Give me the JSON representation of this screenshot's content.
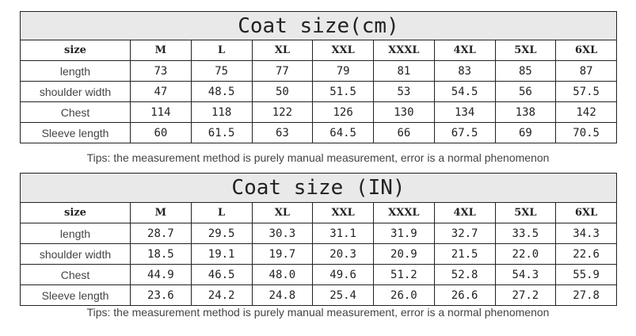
{
  "tables": [
    {
      "title": "Coat size(cm)",
      "header": [
        "size",
        "M",
        "L",
        "XL",
        "XXL",
        "XXXL",
        "4XL",
        "5XL",
        "6XL"
      ],
      "rows": [
        {
          "label": "length",
          "values": [
            "73",
            "75",
            "77",
            "79",
            "81",
            "83",
            "85",
            "87"
          ]
        },
        {
          "label": "shoulder width",
          "values": [
            "47",
            "48.5",
            "50",
            "51.5",
            "53",
            "54.5",
            "56",
            "57.5"
          ]
        },
        {
          "label": "Chest",
          "values": [
            "114",
            "118",
            "122",
            "126",
            "130",
            "134",
            "138",
            "142"
          ]
        },
        {
          "label": "Sleeve length",
          "values": [
            "60",
            "61.5",
            "63",
            "64.5",
            "66",
            "67.5",
            "69",
            "70.5"
          ]
        }
      ],
      "tips": "Tips: the measurement method is purely manual measurement, error is a normal phenomenon"
    },
    {
      "title": "Coat size (IN)",
      "header": [
        "size",
        "M",
        "L",
        "XL",
        "XXL",
        "XXXL",
        "4XL",
        "5XL",
        "6XL"
      ],
      "rows": [
        {
          "label": "length",
          "values": [
            "28.7",
            "29.5",
            "30.3",
            "31.1",
            "31.9",
            "32.7",
            "33.5",
            "34.3"
          ]
        },
        {
          "label": "shoulder width",
          "values": [
            "18.5",
            "19.1",
            "19.7",
            "20.3",
            "20.9",
            "21.5",
            "22.0",
            "22.6"
          ]
        },
        {
          "label": "Chest",
          "values": [
            "44.9",
            "46.5",
            "48.0",
            "49.6",
            "51.2",
            "52.8",
            "54.3",
            "55.9"
          ]
        },
        {
          "label": "Sleeve length",
          "values": [
            "23.6",
            "24.2",
            "24.8",
            "25.4",
            "26.0",
            "26.6",
            "27.2",
            "27.8"
          ]
        }
      ],
      "tips": "Tips: the measurement method is purely manual measurement, error is a normal phenomenon"
    }
  ]
}
